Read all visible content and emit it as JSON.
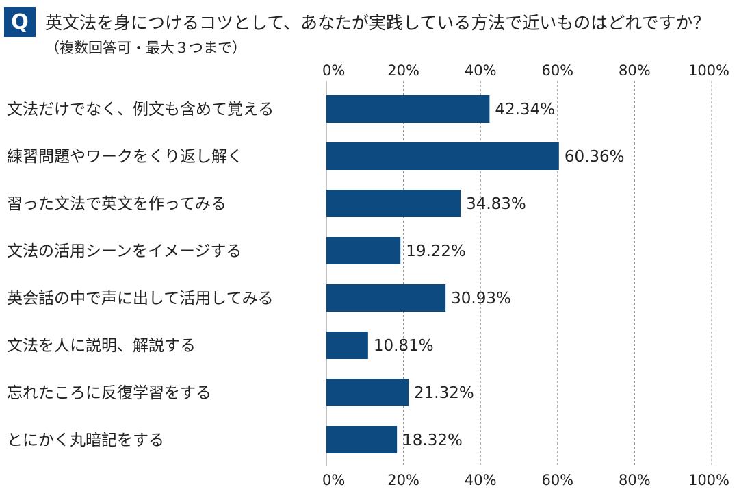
{
  "question": {
    "badge": "Q",
    "text": "英文法を身につけるコツとして、あなたが実践している方法で近いものはどれですか？",
    "subtext": "（複数回答可・最大３つまで）"
  },
  "colors": {
    "bar": "#0d4a7f",
    "badge": "#0d4a8a",
    "grid": "#888888"
  },
  "chart_data": {
    "type": "bar",
    "orientation": "horizontal",
    "categories": [
      "文法だけでなく、例文も含めて覚える",
      "練習問題やワークをくり返し解く",
      "習った文法で英文を作ってみる",
      "文法の活用シーンをイメージする",
      "英会話の中で声に出して活用してみる",
      "文法を人に説明、解説する",
      "忘れたころに反復学習をする",
      "とにかく丸暗記をする"
    ],
    "values": [
      42.34,
      60.36,
      34.83,
      19.22,
      30.93,
      10.81,
      21.32,
      18.32
    ],
    "value_labels": [
      "42.34%",
      "60.36%",
      "34.83%",
      "19.22%",
      "30.93%",
      "10.81%",
      "21.32%",
      "18.32%"
    ],
    "xticks": [
      0,
      20,
      40,
      60,
      80,
      100
    ],
    "xtick_labels": [
      "0%",
      "20%",
      "40%",
      "60%",
      "80%",
      "100%"
    ],
    "xlim": [
      0,
      100
    ],
    "grid": true,
    "xaxis_position": "top and bottom"
  }
}
